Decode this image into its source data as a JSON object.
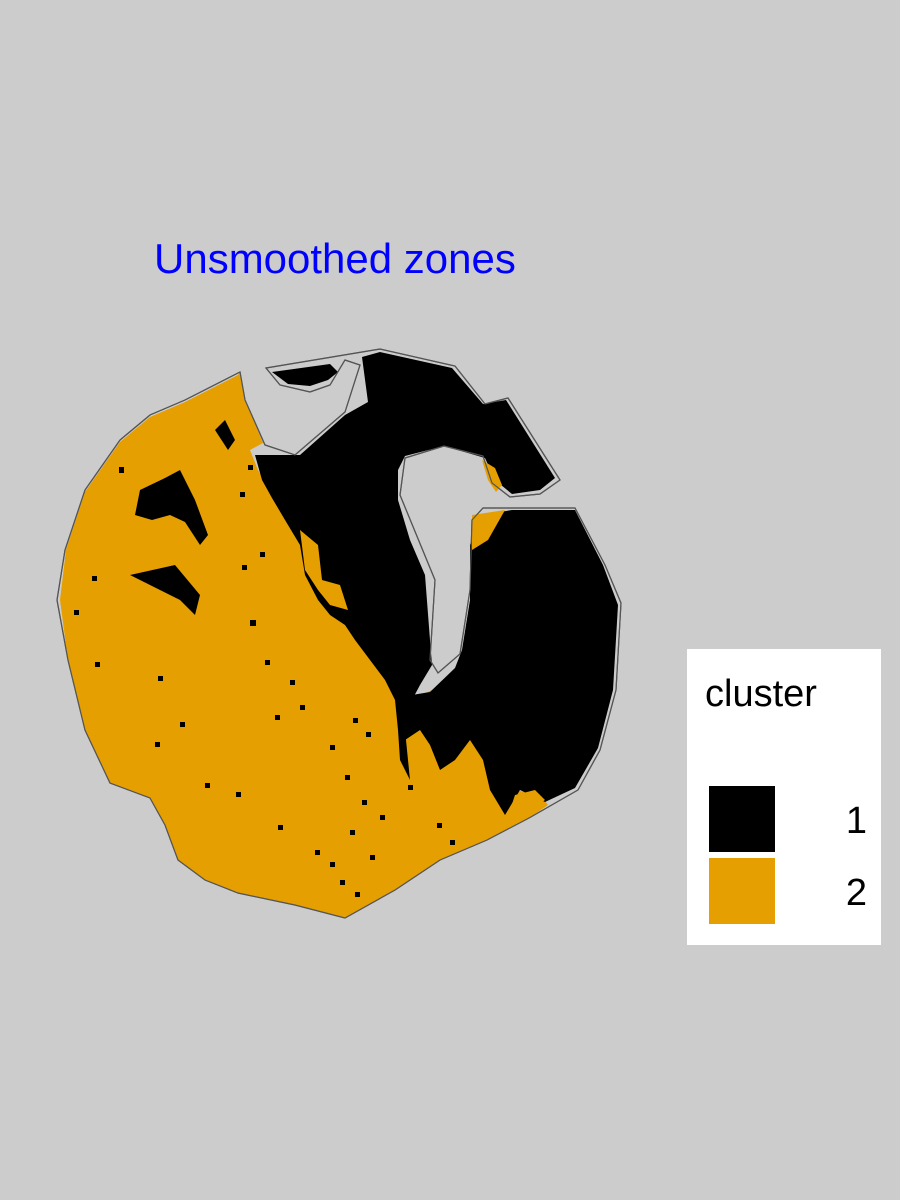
{
  "map": {
    "title": "Unsmoothed zones",
    "title_color": "#0000ff",
    "background_color": "#cccccc",
    "boundary_color": "#555555",
    "zones": [
      {
        "cluster": "1",
        "color": "#000000"
      },
      {
        "cluster": "2",
        "color": "#e69f00"
      }
    ]
  },
  "legend": {
    "title": "cluster",
    "items": [
      {
        "label": "1",
        "color": "#000000"
      },
      {
        "label": "2",
        "color": "#e69f00"
      }
    ]
  }
}
